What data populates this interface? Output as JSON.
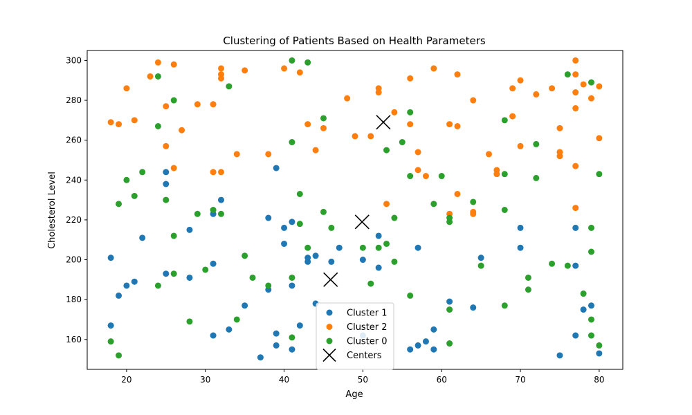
{
  "chart_data": {
    "type": "scatter",
    "title": "Clustering of Patients Based on Health Parameters",
    "xlabel": "Age",
    "ylabel": "Cholesterol Level",
    "xlim": [
      15,
      83
    ],
    "ylim": [
      145,
      305
    ],
    "xticks": [
      20,
      30,
      40,
      50,
      60,
      70,
      80
    ],
    "yticks": [
      160,
      180,
      200,
      220,
      240,
      260,
      280,
      300
    ],
    "grid": false,
    "legend_position": "bottom-center",
    "series": [
      {
        "name": "Cluster 1",
        "color": "#1f77b4",
        "marker": "circle",
        "points": [
          [
            18,
            201
          ],
          [
            18,
            167
          ],
          [
            19,
            182
          ],
          [
            20,
            187
          ],
          [
            21,
            189
          ],
          [
            22,
            211
          ],
          [
            25,
            244
          ],
          [
            25,
            238
          ],
          [
            25,
            193
          ],
          [
            28,
            215
          ],
          [
            28,
            191
          ],
          [
            31,
            223
          ],
          [
            31,
            198
          ],
          [
            31,
            162
          ],
          [
            32,
            230
          ],
          [
            33,
            165
          ],
          [
            35,
            177
          ],
          [
            37,
            151
          ],
          [
            38,
            221
          ],
          [
            38,
            185
          ],
          [
            39,
            246
          ],
          [
            39,
            163
          ],
          [
            39,
            157
          ],
          [
            40,
            216
          ],
          [
            40,
            208
          ],
          [
            41,
            219
          ],
          [
            41,
            187
          ],
          [
            41,
            155
          ],
          [
            42,
            167
          ],
          [
            43,
            201
          ],
          [
            43,
            199
          ],
          [
            44,
            202
          ],
          [
            44,
            178
          ],
          [
            46,
            199
          ],
          [
            47,
            206
          ],
          [
            50,
            200
          ],
          [
            50,
            162
          ],
          [
            52,
            212
          ],
          [
            52,
            196
          ],
          [
            56,
            155
          ],
          [
            57,
            206
          ],
          [
            57,
            157
          ],
          [
            58,
            159
          ],
          [
            59,
            165
          ],
          [
            59,
            155
          ],
          [
            61,
            179
          ],
          [
            64,
            176
          ],
          [
            65,
            201
          ],
          [
            70,
            216
          ],
          [
            70,
            206
          ],
          [
            75,
            152
          ],
          [
            77,
            216
          ],
          [
            77,
            197
          ],
          [
            77,
            162
          ],
          [
            78,
            175
          ],
          [
            79,
            177
          ],
          [
            80,
            153
          ]
        ]
      },
      {
        "name": "Cluster 2",
        "color": "#ff7f0e",
        "marker": "circle",
        "points": [
          [
            18,
            269
          ],
          [
            19,
            268
          ],
          [
            20,
            286
          ],
          [
            21,
            270
          ],
          [
            23,
            292
          ],
          [
            24,
            299
          ],
          [
            25,
            277
          ],
          [
            25,
            257
          ],
          [
            26,
            298
          ],
          [
            26,
            246
          ],
          [
            27,
            265
          ],
          [
            29,
            278
          ],
          [
            31,
            278
          ],
          [
            31,
            244
          ],
          [
            32,
            296
          ],
          [
            32,
            293
          ],
          [
            32,
            291
          ],
          [
            32,
            244
          ],
          [
            34,
            253
          ],
          [
            35,
            295
          ],
          [
            38,
            253
          ],
          [
            40,
            296
          ],
          [
            42,
            294
          ],
          [
            43,
            268
          ],
          [
            44,
            255
          ],
          [
            45,
            266
          ],
          [
            48,
            281
          ],
          [
            49,
            262
          ],
          [
            51,
            262
          ],
          [
            52,
            286
          ],
          [
            52,
            284
          ],
          [
            53,
            228
          ],
          [
            54,
            274
          ],
          [
            56,
            291
          ],
          [
            56,
            268
          ],
          [
            57,
            254
          ],
          [
            57,
            245
          ],
          [
            58,
            242
          ],
          [
            59,
            296
          ],
          [
            61,
            268
          ],
          [
            61,
            223
          ],
          [
            62,
            293
          ],
          [
            62,
            267
          ],
          [
            62,
            233
          ],
          [
            64,
            280
          ],
          [
            64,
            224
          ],
          [
            64,
            223
          ],
          [
            66,
            253
          ],
          [
            67,
            245
          ],
          [
            67,
            243
          ],
          [
            69,
            286
          ],
          [
            69,
            272
          ],
          [
            70,
            290
          ],
          [
            70,
            257
          ],
          [
            72,
            283
          ],
          [
            74,
            286
          ],
          [
            75,
            266
          ],
          [
            75,
            254
          ],
          [
            75,
            252
          ],
          [
            77,
            300
          ],
          [
            77,
            293
          ],
          [
            77,
            284
          ],
          [
            77,
            276
          ],
          [
            77,
            247
          ],
          [
            77,
            226
          ],
          [
            78,
            288
          ],
          [
            79,
            281
          ],
          [
            80,
            287
          ],
          [
            80,
            261
          ]
        ]
      },
      {
        "name": "Cluster 0",
        "color": "#2ca02c",
        "marker": "circle",
        "points": [
          [
            18,
            159
          ],
          [
            19,
            228
          ],
          [
            19,
            152
          ],
          [
            20,
            240
          ],
          [
            21,
            232
          ],
          [
            22,
            244
          ],
          [
            24,
            292
          ],
          [
            24,
            267
          ],
          [
            24,
            187
          ],
          [
            25,
            230
          ],
          [
            26,
            280
          ],
          [
            26,
            212
          ],
          [
            26,
            193
          ],
          [
            28,
            169
          ],
          [
            29,
            223
          ],
          [
            30,
            195
          ],
          [
            31,
            225
          ],
          [
            32,
            223
          ],
          [
            33,
            287
          ],
          [
            34,
            170
          ],
          [
            35,
            202
          ],
          [
            36,
            191
          ],
          [
            38,
            187
          ],
          [
            41,
            300
          ],
          [
            41,
            259
          ],
          [
            41,
            191
          ],
          [
            41,
            161
          ],
          [
            42,
            233
          ],
          [
            42,
            218
          ],
          [
            43,
            299
          ],
          [
            43,
            206
          ],
          [
            45,
            271
          ],
          [
            45,
            224
          ],
          [
            46,
            216
          ],
          [
            50,
            206
          ],
          [
            51,
            188
          ],
          [
            52,
            206
          ],
          [
            53,
            255
          ],
          [
            53,
            208
          ],
          [
            54,
            221
          ],
          [
            54,
            199
          ],
          [
            55,
            259
          ],
          [
            56,
            274
          ],
          [
            56,
            242
          ],
          [
            56,
            182
          ],
          [
            59,
            228
          ],
          [
            60,
            242
          ],
          [
            61,
            221
          ],
          [
            61,
            219
          ],
          [
            61,
            175
          ],
          [
            61,
            158
          ],
          [
            64,
            229
          ],
          [
            65,
            197
          ],
          [
            68,
            270
          ],
          [
            68,
            243
          ],
          [
            68,
            225
          ],
          [
            68,
            177
          ],
          [
            71,
            191
          ],
          [
            71,
            185
          ],
          [
            72,
            258
          ],
          [
            72,
            241
          ],
          [
            74,
            198
          ],
          [
            76,
            293
          ],
          [
            76,
            197
          ],
          [
            78,
            183
          ],
          [
            79,
            289
          ],
          [
            79,
            216
          ],
          [
            79,
            204
          ],
          [
            79,
            170
          ],
          [
            79,
            162
          ],
          [
            80,
            243
          ],
          [
            80,
            157
          ]
        ]
      },
      {
        "name": "Centers",
        "color": "#000000",
        "marker": "x",
        "points": [
          [
            52.6,
            269
          ],
          [
            49.9,
            219
          ],
          [
            45.9,
            190
          ]
        ]
      }
    ]
  }
}
